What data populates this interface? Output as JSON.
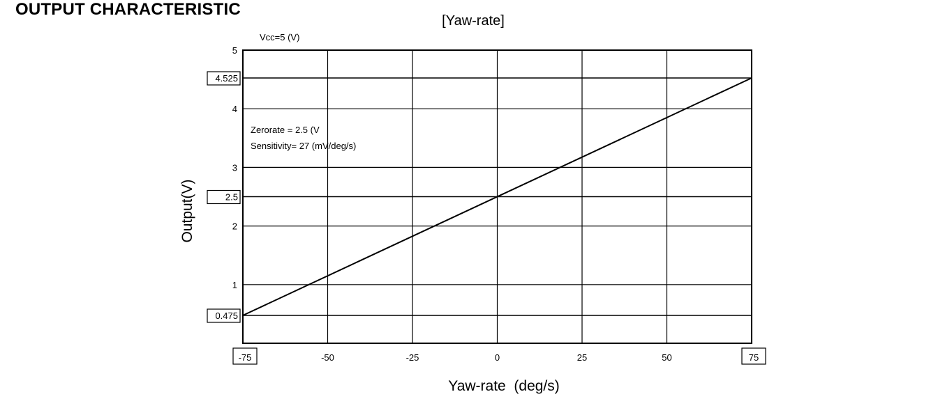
{
  "page_title": "OUTPUT CHARACTERISTIC",
  "chart_data": {
    "type": "line",
    "title": "[Yaw-rate]",
    "subtitle": "Vcc=5 (V)",
    "xlabel": "Yaw-rate  (deg/s)",
    "ylabel": "Output(V)",
    "xlim": [
      -75,
      75
    ],
    "ylim": [
      0,
      5
    ],
    "x_ticks": [
      -75,
      -50,
      -25,
      0,
      25,
      50,
      75
    ],
    "x_tick_labels": [
      "-75",
      "-50",
      "-25",
      "0",
      "25",
      "50",
      "75"
    ],
    "boxed_x_ticks": [
      -75,
      75
    ],
    "y_ticks": [
      1,
      2,
      3,
      4,
      5
    ],
    "y_tick_labels": [
      "1",
      "2",
      "3",
      "4",
      "5"
    ],
    "boxed_y_ticks": [
      0.475,
      2.5,
      4.525
    ],
    "boxed_y_tick_labels": [
      "0.475",
      "2.5",
      "4.525"
    ],
    "grid": true,
    "annotations": [
      "Zerorate = 2.5 (V",
      "Sensitivity= 27 (mV/deg/s)"
    ],
    "series": [
      {
        "x": [
          -75,
          75
        ],
        "y": [
          0.475,
          4.525
        ]
      }
    ]
  }
}
